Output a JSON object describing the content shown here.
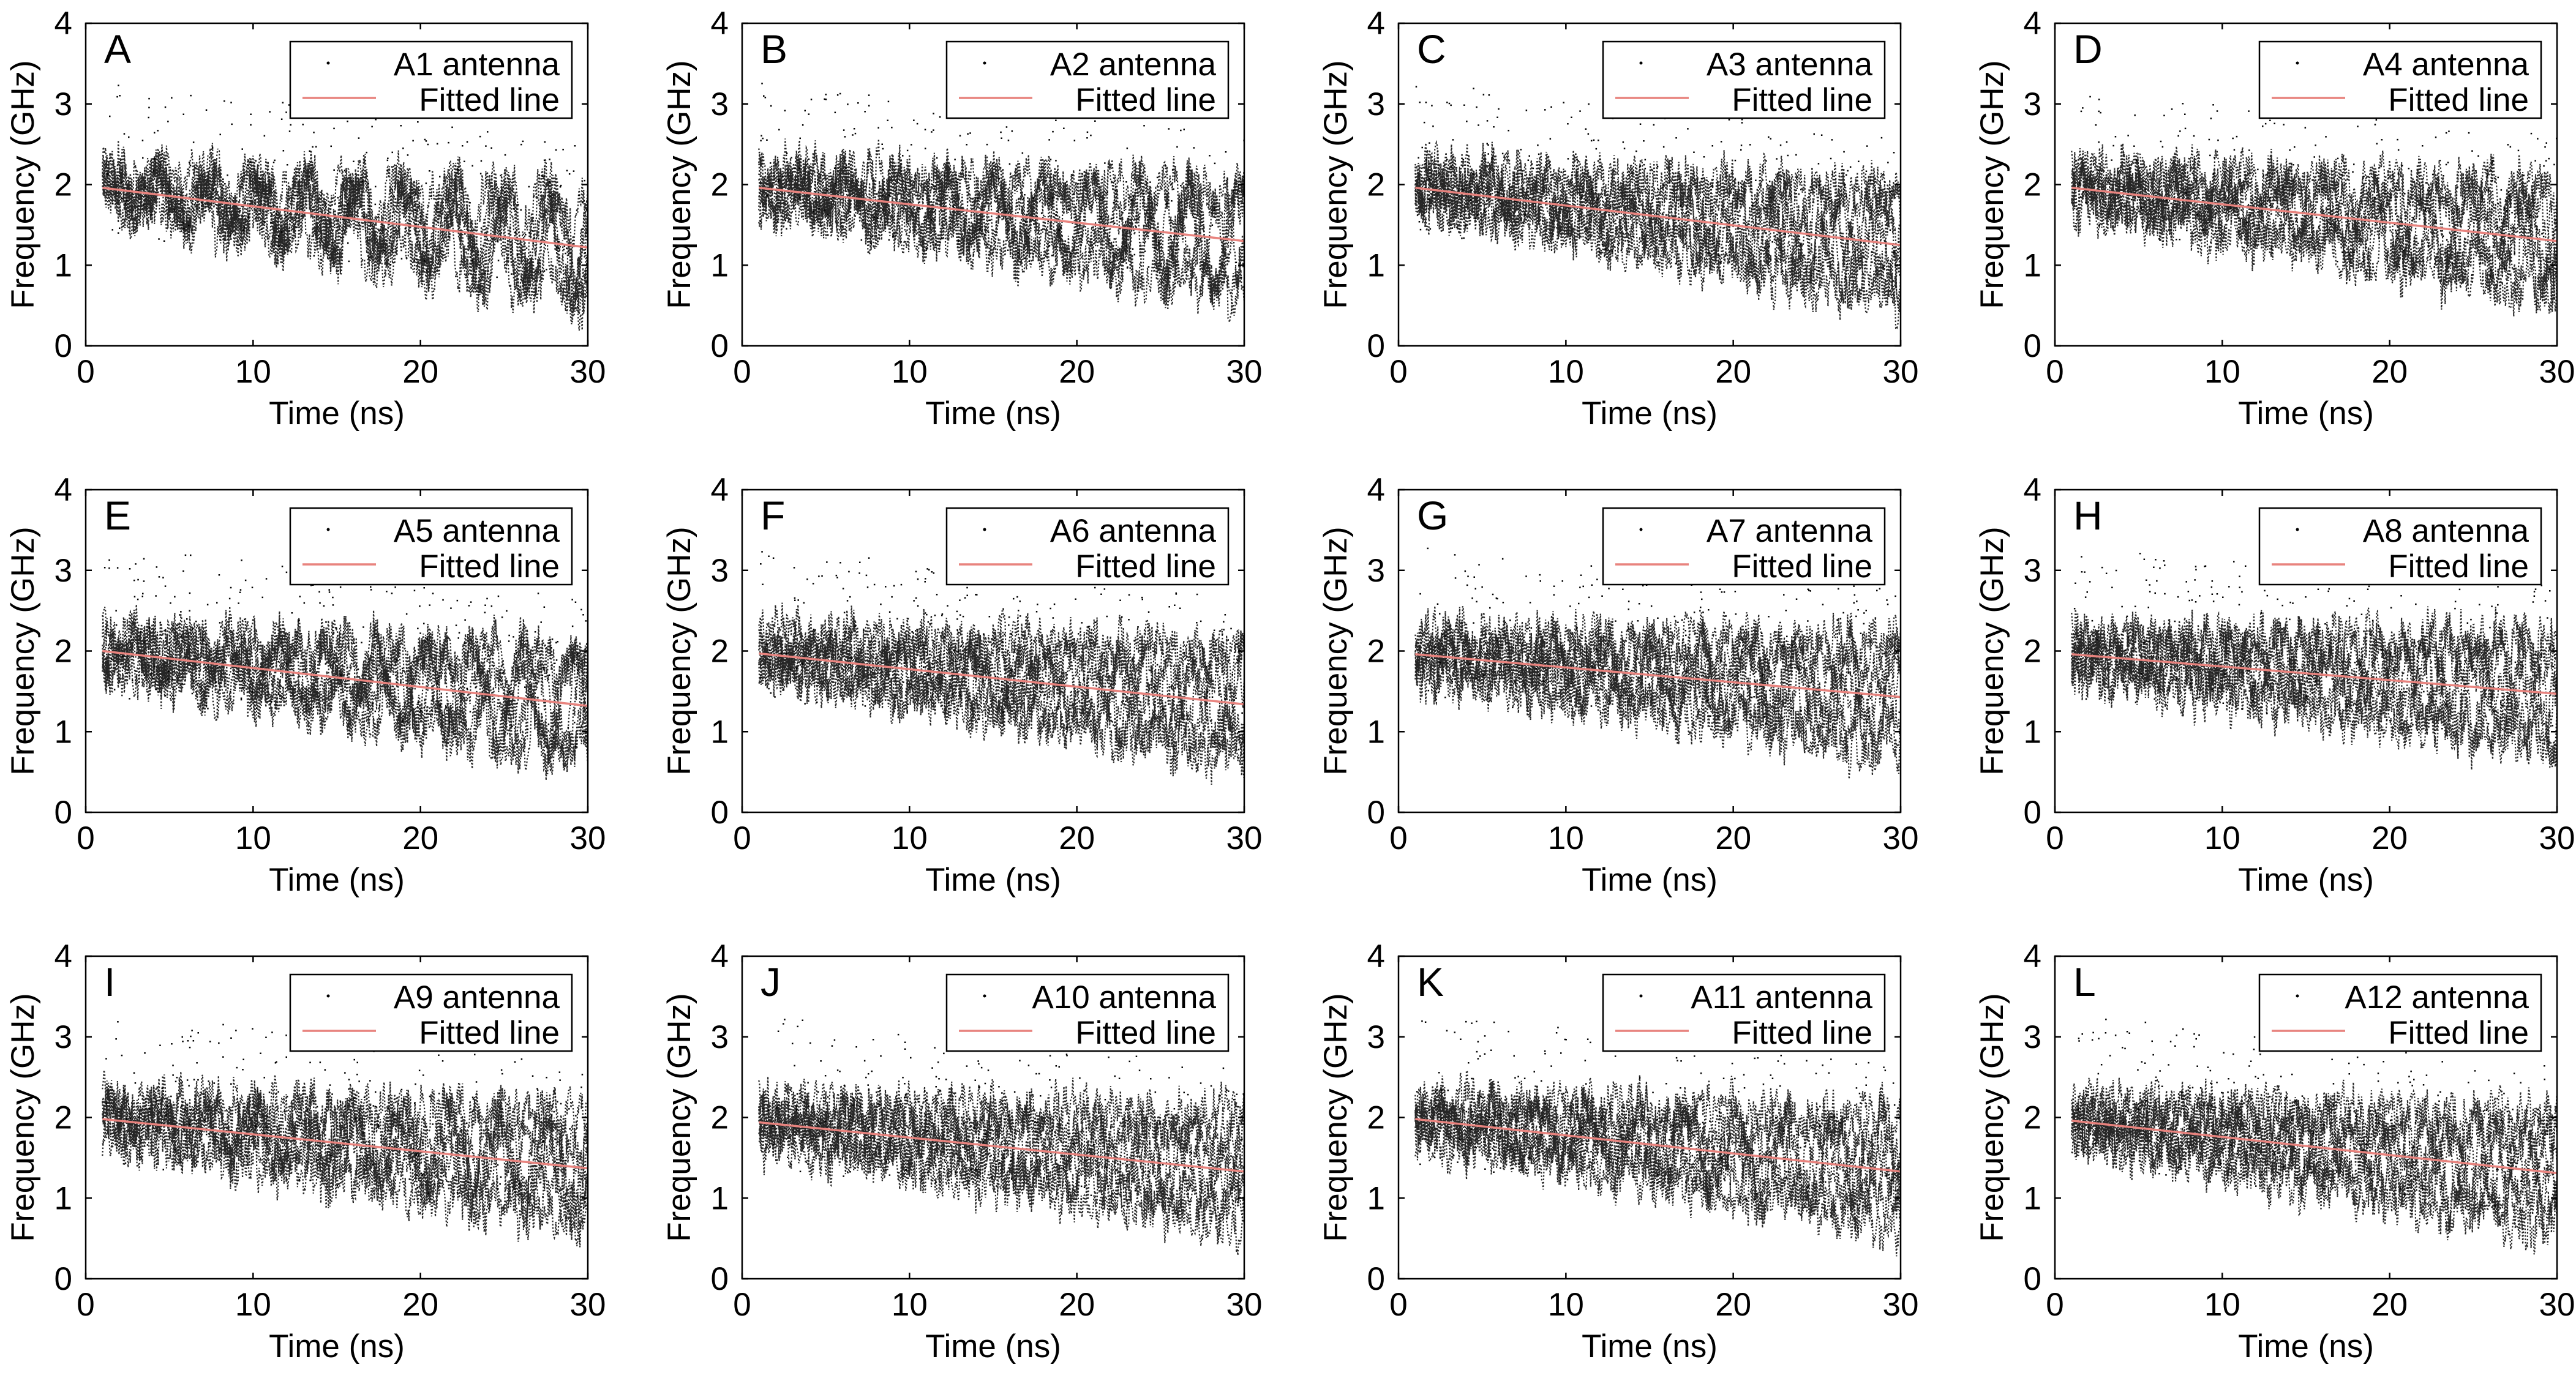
{
  "figure": {
    "xlabel": "Time (ns)",
    "ylabel": "Frequency (GHz)",
    "xlim": [
      0,
      30
    ],
    "ylim": [
      0,
      4
    ],
    "xticks": [
      0,
      10,
      20,
      30
    ],
    "yticks": [
      0,
      1,
      2,
      3,
      4
    ],
    "legend_position": "top-right",
    "fit_color": "#e8837e",
    "data_color": "#000000"
  },
  "chart_data": [
    {
      "type": "scatter",
      "panel_label": "A",
      "series": [
        {
          "name": "A1 antenna",
          "style": "dotted"
        },
        {
          "name": "Fitted line",
          "style": "line",
          "x": [
            1,
            30
          ],
          "y": [
            1.96,
            1.22
          ]
        }
      ],
      "xlabel": "Time (ns)",
      "ylabel": "Frequency (GHz)",
      "xlim": [
        0,
        30
      ],
      "ylim": [
        0,
        4
      ]
    },
    {
      "type": "scatter",
      "panel_label": "B",
      "series": [
        {
          "name": "A2 antenna",
          "style": "dotted"
        },
        {
          "name": "Fitted line",
          "style": "line",
          "x": [
            1,
            30
          ],
          "y": [
            1.96,
            1.3
          ]
        }
      ],
      "xlabel": "Time (ns)",
      "ylabel": "Frequency (GHz)",
      "xlim": [
        0,
        30
      ],
      "ylim": [
        0,
        4
      ]
    },
    {
      "type": "scatter",
      "panel_label": "C",
      "series": [
        {
          "name": "A3 antenna",
          "style": "dotted"
        },
        {
          "name": "Fitted line",
          "style": "line",
          "x": [
            1,
            30
          ],
          "y": [
            1.96,
            1.25
          ]
        }
      ],
      "xlabel": "Time (ns)",
      "ylabel": "Frequency (GHz)",
      "xlim": [
        0,
        30
      ],
      "ylim": [
        0,
        4
      ]
    },
    {
      "type": "scatter",
      "panel_label": "D",
      "series": [
        {
          "name": "A4 antenna",
          "style": "dotted"
        },
        {
          "name": "Fitted line",
          "style": "line",
          "x": [
            1,
            30
          ],
          "y": [
            1.96,
            1.3
          ]
        }
      ],
      "xlabel": "Time (ns)",
      "ylabel": "Frequency (GHz)",
      "xlim": [
        0,
        30
      ],
      "ylim": [
        0,
        4
      ]
    },
    {
      "type": "scatter",
      "panel_label": "E",
      "series": [
        {
          "name": "A5 antenna",
          "style": "dotted"
        },
        {
          "name": "Fitted line",
          "style": "line",
          "x": [
            1,
            30
          ],
          "y": [
            2.0,
            1.32
          ]
        }
      ],
      "xlabel": "Time (ns)",
      "ylabel": "Frequency (GHz)",
      "xlim": [
        0,
        30
      ],
      "ylim": [
        0,
        4
      ]
    },
    {
      "type": "scatter",
      "panel_label": "F",
      "series": [
        {
          "name": "A6 antenna",
          "style": "dotted"
        },
        {
          "name": "Fitted line",
          "style": "line",
          "x": [
            1,
            30
          ],
          "y": [
            1.97,
            1.34
          ]
        }
      ],
      "xlabel": "Time (ns)",
      "ylabel": "Frequency (GHz)",
      "xlim": [
        0,
        30
      ],
      "ylim": [
        0,
        4
      ]
    },
    {
      "type": "scatter",
      "panel_label": "G",
      "series": [
        {
          "name": "A7 antenna",
          "style": "dotted"
        },
        {
          "name": "Fitted line",
          "style": "line",
          "x": [
            1,
            30
          ],
          "y": [
            1.96,
            1.43
          ]
        }
      ],
      "xlabel": "Time (ns)",
      "ylabel": "Frequency (GHz)",
      "xlim": [
        0,
        30
      ],
      "ylim": [
        0,
        4
      ]
    },
    {
      "type": "scatter",
      "panel_label": "H",
      "series": [
        {
          "name": "A8 antenna",
          "style": "dotted"
        },
        {
          "name": "Fitted line",
          "style": "line",
          "x": [
            1,
            30
          ],
          "y": [
            1.96,
            1.47
          ]
        }
      ],
      "xlabel": "Time (ns)",
      "ylabel": "Frequency (GHz)",
      "xlim": [
        0,
        30
      ],
      "ylim": [
        0,
        4
      ]
    },
    {
      "type": "scatter",
      "panel_label": "I",
      "series": [
        {
          "name": "A9 antenna",
          "style": "dotted"
        },
        {
          "name": "Fitted line",
          "style": "line",
          "x": [
            1,
            30
          ],
          "y": [
            1.98,
            1.37
          ]
        }
      ],
      "xlabel": "Time (ns)",
      "ylabel": "Frequency (GHz)",
      "xlim": [
        0,
        30
      ],
      "ylim": [
        0,
        4
      ]
    },
    {
      "type": "scatter",
      "panel_label": "J",
      "series": [
        {
          "name": "A10 antenna",
          "style": "dotted"
        },
        {
          "name": "Fitted line",
          "style": "line",
          "x": [
            1,
            30
          ],
          "y": [
            1.94,
            1.33
          ]
        }
      ],
      "xlabel": "Time (ns)",
      "ylabel": "Frequency (GHz)",
      "xlim": [
        0,
        30
      ],
      "ylim": [
        0,
        4
      ]
    },
    {
      "type": "scatter",
      "panel_label": "K",
      "series": [
        {
          "name": "A11 antenna",
          "style": "dotted"
        },
        {
          "name": "Fitted line",
          "style": "line",
          "x": [
            1,
            30
          ],
          "y": [
            1.98,
            1.33
          ]
        }
      ],
      "xlabel": "Time (ns)",
      "ylabel": "Frequency (GHz)",
      "xlim": [
        0,
        30
      ],
      "ylim": [
        0,
        4
      ]
    },
    {
      "type": "scatter",
      "panel_label": "L",
      "series": [
        {
          "name": "A12 antenna",
          "style": "dotted"
        },
        {
          "name": "Fitted line",
          "style": "line",
          "x": [
            1,
            30
          ],
          "y": [
            1.96,
            1.31
          ]
        }
      ],
      "xlabel": "Time (ns)",
      "ylabel": "Frequency (GHz)",
      "xlim": [
        0,
        30
      ],
      "ylim": [
        0,
        4
      ]
    }
  ]
}
